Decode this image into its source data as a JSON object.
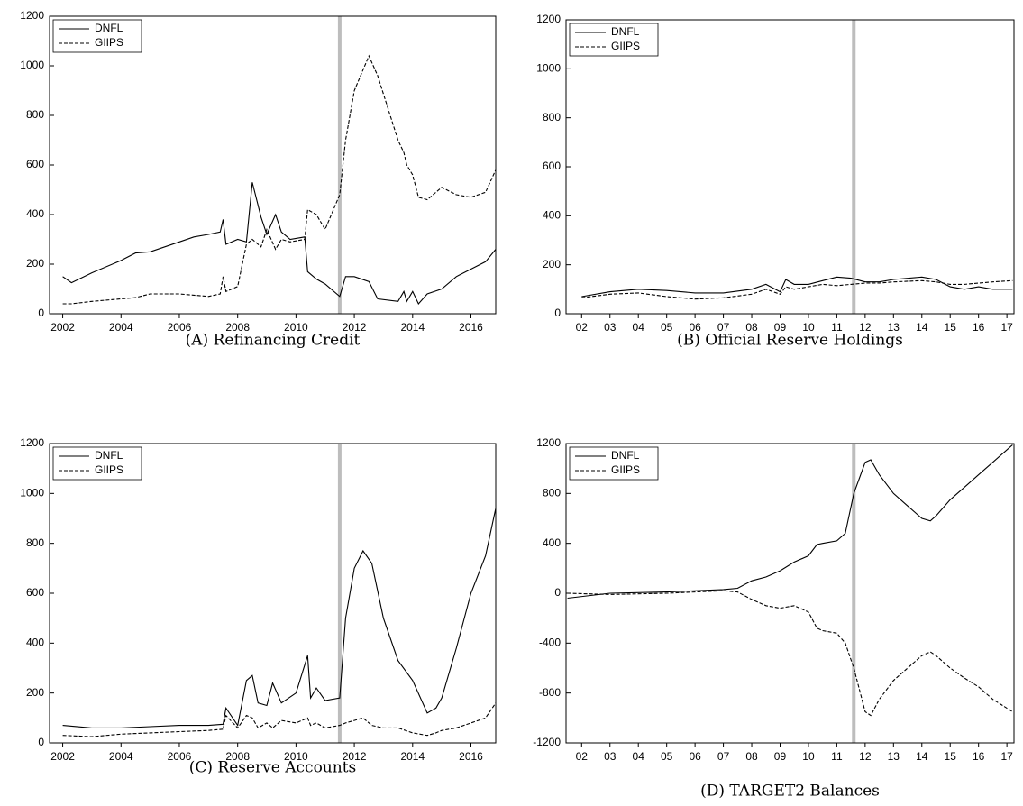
{
  "chart_data": [
    {
      "type": "line",
      "caption": "(A) Refinancing Credit",
      "x": [
        2002,
        2002.3,
        2003,
        2004,
        2004.5,
        2005,
        2006,
        2006.5,
        2007,
        2007.4,
        2007.5,
        2007.6,
        2008,
        2008.3,
        2008.5,
        2008.8,
        2009,
        2009.3,
        2009.5,
        2009.8,
        2010.3,
        2010.4,
        2010.7,
        2011,
        2011.5,
        2011.7,
        2012,
        2012.5,
        2012.8,
        2013.5,
        2013.7,
        2013.8,
        2014,
        2014.2,
        2014.5,
        2015,
        2015.5,
        2016,
        2016.5,
        2016.85
      ],
      "series": [
        {
          "name": "DNFL",
          "color": "#000000",
          "dashed": false,
          "values": [
            150,
            125,
            165,
            215,
            245,
            250,
            290,
            310,
            320,
            330,
            380,
            280,
            300,
            290,
            530,
            390,
            320,
            400,
            330,
            300,
            310,
            170,
            140,
            120,
            70,
            150,
            150,
            130,
            60,
            50,
            90,
            50,
            90,
            40,
            80,
            100,
            150,
            180,
            210,
            260
          ]
        },
        {
          "name": "GIIPS",
          "color": "#000000",
          "dashed": true,
          "values": [
            40,
            40,
            50,
            60,
            65,
            80,
            80,
            75,
            70,
            80,
            150,
            90,
            110,
            280,
            300,
            270,
            340,
            260,
            300,
            290,
            300,
            420,
            400,
            340,
            480,
            700,
            900,
            1040,
            960,
            700,
            650,
            600,
            560,
            470,
            460,
            510,
            480,
            470,
            490,
            580
          ]
        }
      ],
      "xlim": [
        2001.55,
        2016.85
      ],
      "xticks": [
        2002,
        2004,
        2006,
        2008,
        2010,
        2012,
        2014,
        2016
      ],
      "ylim": [
        0,
        1200
      ],
      "yticks": [
        0,
        200,
        400,
        600,
        800,
        1000,
        1200
      ],
      "marker_line_x": 2011.5,
      "marker_line_color": "#bdbdbd",
      "legend": "top-left"
    },
    {
      "type": "line",
      "caption": "(B) Official Reserve Holdings",
      "x": [
        2002,
        2003,
        2004,
        2005,
        2006,
        2007,
        2008,
        2008.5,
        2009,
        2009.2,
        2009.5,
        2010,
        2010.5,
        2011,
        2011.5,
        2012,
        2012.5,
        2013,
        2014,
        2014.5,
        2015,
        2015.5,
        2016,
        2016.5,
        2017.2
      ],
      "series": [
        {
          "name": "DNFL",
          "color": "#000000",
          "dashed": false,
          "values": [
            70,
            90,
            100,
            95,
            85,
            85,
            100,
            120,
            90,
            140,
            120,
            120,
            135,
            150,
            145,
            130,
            130,
            140,
            150,
            140,
            110,
            100,
            110,
            100,
            100
          ]
        },
        {
          "name": "GIIPS",
          "color": "#000000",
          "dashed": true,
          "values": [
            65,
            80,
            85,
            70,
            60,
            65,
            80,
            100,
            80,
            110,
            100,
            110,
            120,
            115,
            120,
            125,
            125,
            130,
            135,
            130,
            120,
            120,
            125,
            130,
            135
          ]
        }
      ],
      "xlim": [
        2001.45,
        2017.25
      ],
      "xticks": [
        {
          "value": 2002,
          "label": "02"
        },
        {
          "value": 2003,
          "label": "03"
        },
        {
          "value": 2004,
          "label": "04"
        },
        {
          "value": 2005,
          "label": "05"
        },
        {
          "value": 2006,
          "label": "06"
        },
        {
          "value": 2007,
          "label": "07"
        },
        {
          "value": 2008,
          "label": "08"
        },
        {
          "value": 2009,
          "label": "09"
        },
        {
          "value": 2010,
          "label": "10"
        },
        {
          "value": 2011,
          "label": "11"
        },
        {
          "value": 2012,
          "label": "12"
        },
        {
          "value": 2013,
          "label": "13"
        },
        {
          "value": 2014,
          "label": "14"
        },
        {
          "value": 2015,
          "label": "15"
        },
        {
          "value": 2016,
          "label": "16"
        },
        {
          "value": 2017,
          "label": "17"
        }
      ],
      "ylim": [
        0,
        1200
      ],
      "yticks": [
        0,
        200,
        400,
        600,
        800,
        1000,
        1200
      ],
      "marker_line_x": 2011.6,
      "marker_line_color": "#bdbdbd",
      "legend": "top-left"
    },
    {
      "type": "line",
      "caption": "(C) Reserve Accounts",
      "x": [
        2002,
        2003,
        2004,
        2005,
        2006,
        2007,
        2007.5,
        2007.6,
        2008,
        2008.3,
        2008.5,
        2008.7,
        2009,
        2009.2,
        2009.5,
        2010,
        2010.4,
        2010.5,
        2010.7,
        2011,
        2011.5,
        2011.7,
        2012,
        2012.3,
        2012.6,
        2013,
        2013.5,
        2014,
        2014.5,
        2014.8,
        2015,
        2015.5,
        2016,
        2016.5,
        2016.85
      ],
      "series": [
        {
          "name": "DNFL",
          "color": "#000000",
          "dashed": false,
          "values": [
            70,
            60,
            60,
            65,
            70,
            70,
            75,
            140,
            70,
            250,
            270,
            160,
            150,
            240,
            160,
            200,
            350,
            180,
            220,
            170,
            180,
            500,
            700,
            770,
            720,
            500,
            330,
            250,
            120,
            140,
            180,
            380,
            600,
            750,
            940
          ]
        },
        {
          "name": "GIIPS",
          "color": "#000000",
          "dashed": true,
          "values": [
            30,
            25,
            35,
            40,
            45,
            50,
            55,
            110,
            60,
            110,
            100,
            60,
            80,
            60,
            90,
            80,
            100,
            70,
            80,
            60,
            70,
            80,
            90,
            100,
            70,
            60,
            60,
            40,
            30,
            40,
            50,
            60,
            80,
            100,
            160
          ]
        }
      ],
      "xlim": [
        2001.55,
        2016.85
      ],
      "xticks": [
        2002,
        2004,
        2006,
        2008,
        2010,
        2012,
        2014,
        2016
      ],
      "ylim": [
        0,
        1200
      ],
      "yticks": [
        0,
        200,
        400,
        600,
        800,
        1000,
        1200
      ],
      "marker_line_x": 2011.5,
      "marker_line_color": "#bdbdbd",
      "legend": "top-left"
    },
    {
      "type": "line",
      "caption": "(D) TARGET2 Balances",
      "x": [
        2001.5,
        2003,
        2005,
        2007,
        2007.5,
        2008,
        2008.5,
        2009,
        2009.5,
        2010,
        2010.3,
        2010.5,
        2011,
        2011.3,
        2011.6,
        2012,
        2012.2,
        2012.5,
        2013,
        2013.5,
        2014,
        2014.3,
        2014.5,
        2015,
        2015.5,
        2016,
        2016.5,
        2017.2
      ],
      "series": [
        {
          "name": "DNFL",
          "color": "#000000",
          "dashed": false,
          "values": [
            -40,
            0,
            10,
            30,
            40,
            100,
            130,
            180,
            250,
            300,
            390,
            400,
            420,
            480,
            800,
            1050,
            1070,
            950,
            800,
            700,
            600,
            580,
            620,
            750,
            850,
            950,
            1050,
            1190
          ]
        },
        {
          "name": "GIIPS",
          "color": "#000000",
          "dashed": true,
          "values": [
            0,
            -10,
            0,
            20,
            10,
            -50,
            -100,
            -120,
            -100,
            -150,
            -280,
            -300,
            -320,
            -400,
            -600,
            -950,
            -980,
            -850,
            -700,
            -600,
            -500,
            -470,
            -500,
            -600,
            -680,
            -750,
            -850,
            -950
          ]
        }
      ],
      "xlim": [
        2001.45,
        2017.25
      ],
      "xticks": [
        {
          "value": 2002,
          "label": "02"
        },
        {
          "value": 2003,
          "label": "03"
        },
        {
          "value": 2004,
          "label": "04"
        },
        {
          "value": 2005,
          "label": "05"
        },
        {
          "value": 2006,
          "label": "06"
        },
        {
          "value": 2007,
          "label": "07"
        },
        {
          "value": 2008,
          "label": "08"
        },
        {
          "value": 2009,
          "label": "09"
        },
        {
          "value": 2010,
          "label": "10"
        },
        {
          "value": 2011,
          "label": "11"
        },
        {
          "value": 2012,
          "label": "12"
        },
        {
          "value": 2013,
          "label": "13"
        },
        {
          "value": 2014,
          "label": "14"
        },
        {
          "value": 2015,
          "label": "15"
        },
        {
          "value": 2016,
          "label": "16"
        },
        {
          "value": 2017,
          "label": "17"
        }
      ],
      "ylim": [
        -1200,
        1200
      ],
      "yticks": [
        -1200,
        -800,
        -400,
        0,
        400,
        800,
        1200
      ],
      "marker_line_x": 2011.6,
      "marker_line_color": "#bdbdbd",
      "legend": "top-left"
    }
  ]
}
